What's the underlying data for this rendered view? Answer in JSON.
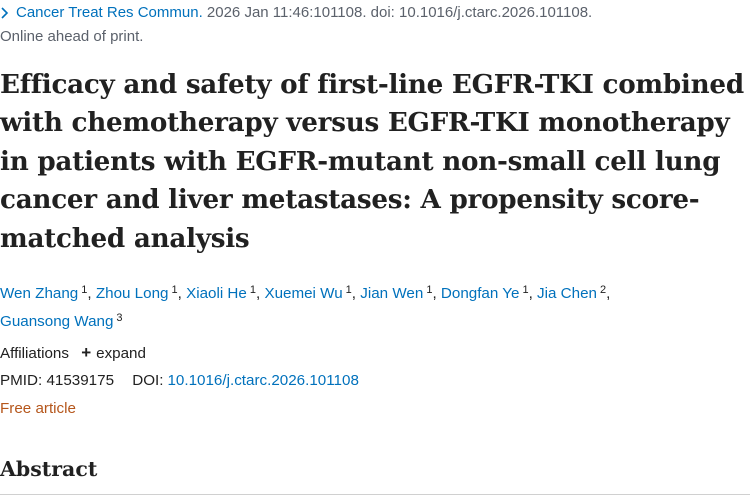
{
  "citation": {
    "journal": "Cancer Treat Res Commun.",
    "details": "2026 Jan 11:46:101108. doi: 10.1016/j.ctarc.2026.101108."
  },
  "status": "Online ahead of print.",
  "title": "Efficacy and safety of first-line EGFR-TKI combined with chemotherapy versus EGFR-TKI monotherapy in patients with EGFR-mutant non-small cell lung cancer and liver metastases: A propensity score-matched analysis",
  "authors": [
    {
      "name": "Wen Zhang",
      "aff": "1"
    },
    {
      "name": "Zhou Long",
      "aff": "1"
    },
    {
      "name": "Xiaoli He",
      "aff": "1"
    },
    {
      "name": "Xuemei Wu",
      "aff": "1"
    },
    {
      "name": "Jian Wen",
      "aff": "1"
    },
    {
      "name": "Dongfan Ye",
      "aff": "1"
    },
    {
      "name": "Jia Chen",
      "aff": "2"
    },
    {
      "name": "Guansong Wang",
      "aff": "3"
    }
  ],
  "affiliations": {
    "label": "Affiliations",
    "expand_label": "expand"
  },
  "identifiers": {
    "pmid_label": "PMID:",
    "pmid": "41539175",
    "doi_label": "DOI:",
    "doi": "10.1016/j.ctarc.2026.101108"
  },
  "free_article": "Free article",
  "abstract_heading": "Abstract",
  "colors": {
    "link": "#0071bc",
    "free_article": "#b5561b",
    "text": "#212121"
  },
  "icons": {
    "citation_toggle": "chevron-right-icon",
    "expand": "plus-icon"
  }
}
